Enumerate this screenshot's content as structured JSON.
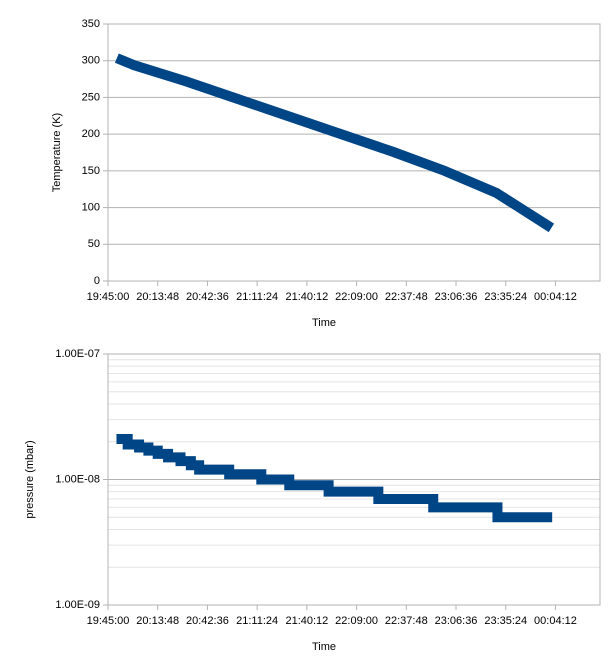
{
  "chart_data": [
    {
      "type": "line",
      "x_label": "Time",
      "y_label": "Temperature (K)",
      "log_y": false,
      "grid": true,
      "xlim": [
        19.75,
        24.5
      ],
      "ylim": [
        0,
        350
      ],
      "xticks": [
        {
          "value": 19.75,
          "label": "19:45:00"
        },
        {
          "value": 20.23,
          "label": "20:13:48"
        },
        {
          "value": 20.71,
          "label": "20:42:36"
        },
        {
          "value": 21.19,
          "label": "21:11:24"
        },
        {
          "value": 21.67,
          "label": "21:40:12"
        },
        {
          "value": 22.15,
          "label": "22:09:00"
        },
        {
          "value": 22.63,
          "label": "22:37:48"
        },
        {
          "value": 23.11,
          "label": "23:06:36"
        },
        {
          "value": 23.59,
          "label": "23:35:24"
        },
        {
          "value": 24.07,
          "label": "00:04:12"
        }
      ],
      "yticks": [
        0,
        50,
        100,
        150,
        200,
        250,
        300,
        350
      ],
      "series": [
        {
          "color": "#004586",
          "x": [
            19.88,
            20.0,
            20.5,
            21.0,
            21.5,
            22.0,
            22.5,
            23.0,
            23.5,
            23.99
          ],
          "values": [
            301,
            294,
            272,
            248,
            224,
            200,
            176,
            150,
            120,
            76
          ]
        }
      ]
    },
    {
      "type": "line",
      "x_label": "Time",
      "y_label": "pressure (mbar)",
      "log_y": true,
      "grid": true,
      "xlim": [
        19.75,
        24.5
      ],
      "ylim": [
        1e-09,
        1e-07
      ],
      "xticks": [
        {
          "value": 19.75,
          "label": "19:45:00"
        },
        {
          "value": 20.23,
          "label": "20:13:48"
        },
        {
          "value": 20.71,
          "label": "20:42:36"
        },
        {
          "value": 21.19,
          "label": "21:11:24"
        },
        {
          "value": 21.67,
          "label": "21:40:12"
        },
        {
          "value": 22.15,
          "label": "22:09:00"
        },
        {
          "value": 22.63,
          "label": "22:37:48"
        },
        {
          "value": 23.11,
          "label": "23:06:36"
        },
        {
          "value": 23.59,
          "label": "23:35:24"
        },
        {
          "value": 24.07,
          "label": "00:04:12"
        }
      ],
      "yticks": [
        {
          "value": 1e-09,
          "label": "1.00E-09"
        },
        {
          "value": 1e-08,
          "label": "1.00E-08"
        },
        {
          "value": 1e-07,
          "label": "1.00E-07"
        }
      ],
      "series": [
        {
          "color": "#004586",
          "x": [
            19.88,
            19.94,
            19.94,
            20.05,
            20.05,
            20.14,
            20.14,
            20.23,
            20.23,
            20.33,
            20.33,
            20.45,
            20.45,
            20.55,
            20.55,
            20.63,
            20.63,
            20.92,
            20.92,
            21.23,
            21.23,
            21.5,
            21.5,
            21.88,
            21.88,
            22.36,
            22.36,
            22.89,
            22.89,
            23.51,
            23.51,
            23.99
          ],
          "values": [
            2.1e-08,
            2.1e-08,
            1.9e-08,
            1.9e-08,
            1.8e-08,
            1.8e-08,
            1.7e-08,
            1.7e-08,
            1.6e-08,
            1.6e-08,
            1.5e-08,
            1.5e-08,
            1.4e-08,
            1.4e-08,
            1.3e-08,
            1.3e-08,
            1.2e-08,
            1.2e-08,
            1.1e-08,
            1.1e-08,
            1e-08,
            1e-08,
            9e-09,
            9e-09,
            8e-09,
            8e-09,
            7e-09,
            7e-09,
            6e-09,
            6e-09,
            5e-09,
            5e-09
          ]
        }
      ]
    }
  ]
}
